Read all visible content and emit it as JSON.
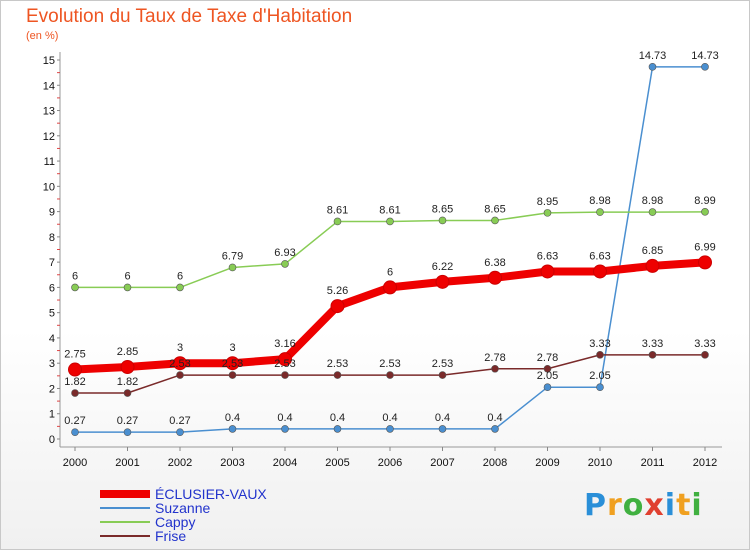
{
  "chart_data": {
    "type": "line",
    "title": "Evolution du Taux de Taxe d'Habitation",
    "subtitle": "(en %)",
    "categories": [
      "2000",
      "2001",
      "2002",
      "2003",
      "2004",
      "2005",
      "2006",
      "2007",
      "2008",
      "2009",
      "2010",
      "2011",
      "2012"
    ],
    "ylim": [
      0,
      15
    ],
    "yticks": [
      0,
      1,
      2,
      3,
      4,
      5,
      6,
      7,
      8,
      9,
      10,
      11,
      12,
      13,
      14,
      15
    ],
    "grid": false,
    "legend_position": "bottom-left",
    "series": [
      {
        "name": "ÉCLUSIER-VAUX",
        "color": "#ee0000",
        "values": [
          2.75,
          2.85,
          3,
          3,
          3.16,
          5.26,
          6,
          6.22,
          6.38,
          6.63,
          6.63,
          6.85,
          6.99
        ],
        "labels": [
          "2.75",
          "2.85",
          "3",
          "3",
          "3.16",
          "5.26",
          "6",
          "6.22",
          "6.38",
          "6.63",
          "6.63",
          "6.85",
          "6.99"
        ]
      },
      {
        "name": "Suzanne",
        "color": "#4a8fd0",
        "values": [
          0.27,
          0.27,
          0.27,
          0.4,
          0.4,
          0.4,
          0.4,
          0.4,
          0.4,
          2.05,
          2.05,
          14.73,
          14.73
        ],
        "labels": [
          "0.27",
          "0.27",
          "0.27",
          "0.4",
          "0.4",
          "0.4",
          "0.4",
          "0.4",
          "0.4",
          "2.05",
          "2.05",
          "14.73",
          "14.73"
        ]
      },
      {
        "name": "Cappy",
        "color": "#88cc55",
        "values": [
          6,
          6,
          6,
          6.79,
          6.93,
          8.61,
          8.61,
          8.65,
          8.65,
          8.95,
          8.98,
          8.98,
          8.99
        ],
        "labels": [
          "6",
          "6",
          "6",
          "6.79",
          "6.93",
          "8.61",
          "8.61",
          "8.65",
          "8.65",
          "8.95",
          "8.98",
          "8.98",
          "8.99"
        ]
      },
      {
        "name": "Frise",
        "color": "#7a2a2a",
        "values": [
          1.82,
          1.82,
          2.53,
          2.53,
          2.53,
          2.53,
          2.53,
          2.53,
          2.78,
          2.78,
          3.33,
          3.33,
          3.33
        ],
        "labels": [
          "1.82",
          "1.82",
          "2.53",
          "2.53",
          "2.53",
          "2.53",
          "2.53",
          "2.53",
          "2.78",
          "2.78",
          "3.33",
          "3.33",
          "3.33"
        ]
      }
    ]
  },
  "logo": {
    "letters": [
      "P",
      "r",
      "o",
      "x",
      "i",
      "t",
      "i"
    ],
    "colors": [
      "#2a8fd8",
      "#f0a020",
      "#40b040",
      "#e04030",
      "#2a8fd8",
      "#f0a020",
      "#40b040"
    ]
  }
}
